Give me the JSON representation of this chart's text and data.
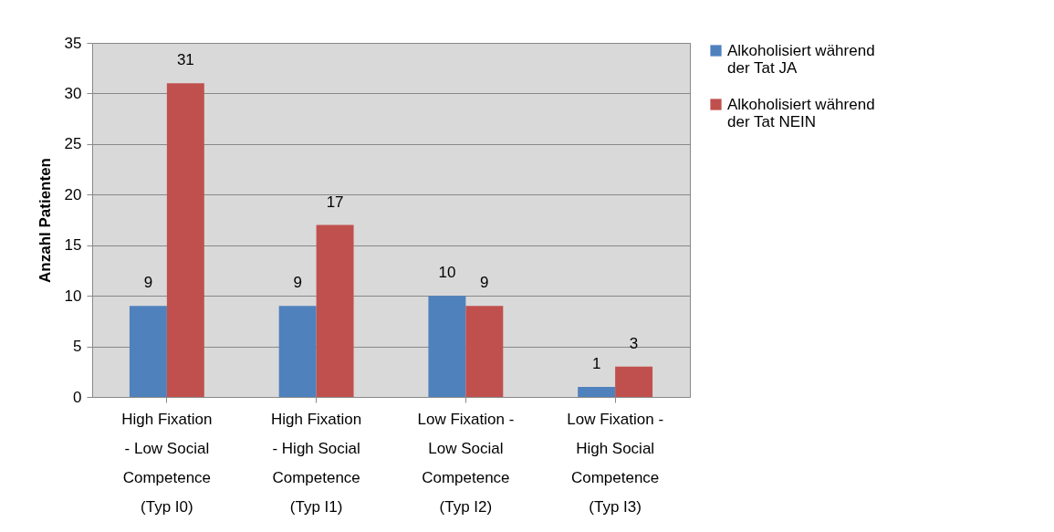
{
  "chart_data": {
    "type": "bar",
    "ylabel": "Anzahl Patienten",
    "categories": [
      "High Fixation - Low Social Competence (Typ I0)",
      "High Fixation - High Social Competence (Typ I1)",
      "Low Fixation - Low Social Competence (Typ I2)",
      "Low Fixation - High Social Competence (Typ I3)"
    ],
    "series": [
      {
        "name": "Alkoholisiert während der Tat JA",
        "color": "#4f81bd",
        "values": [
          9,
          9,
          10,
          1
        ]
      },
      {
        "name": "Alkoholisiert während der Tat NEIN",
        "color": "#c0504d",
        "values": [
          31,
          17,
          9,
          3
        ]
      }
    ],
    "ylim": [
      0,
      35
    ],
    "yticks": [
      0,
      5,
      10,
      15,
      20,
      25,
      30,
      35
    ],
    "grid": "y",
    "legend": "right",
    "data_labels": true
  }
}
